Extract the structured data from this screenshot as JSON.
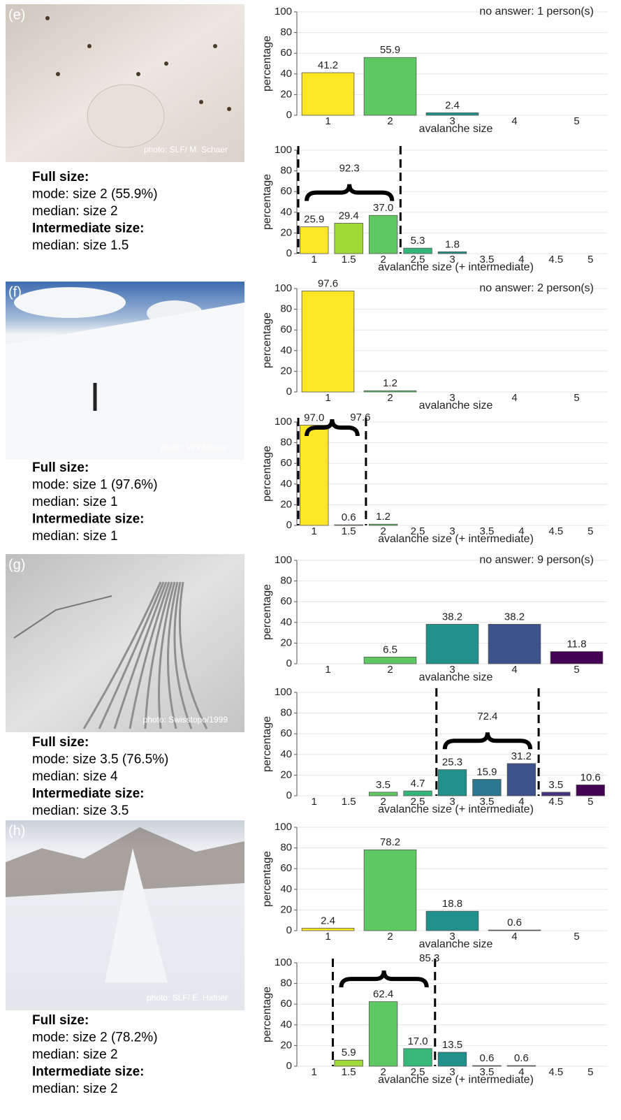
{
  "panels": [
    {
      "label": "(e)",
      "photo_credit": "photo: SLF/ M. Schaer",
      "full_size_heading": "Full size:",
      "full_size": [
        "mode: size 2 (55.9%)",
        "median: size 2"
      ],
      "intermediate_heading": "Intermediate size:",
      "intermediate": [
        "median: size 1.5"
      ]
    },
    {
      "label": "(f)",
      "photo_credit": "photo: W.Wimmer",
      "full_size_heading": "Full size:",
      "full_size": [
        "mode: size 1 (97.6%)",
        "median: size 1"
      ],
      "intermediate_heading": "Intermediate size:",
      "intermediate": [
        "median: size 1"
      ]
    },
    {
      "label": "(g)",
      "photo_credit": "photo: Swisstopo/1999",
      "full_size_heading": "Full size:",
      "full_size": [
        "mode: size 3.5 (76.5%)",
        "median: size 4"
      ],
      "intermediate_heading": "Intermediate size:",
      "intermediate": [
        "median: size 3.5"
      ]
    },
    {
      "label": "(h)",
      "photo_credit": "photo: SLF/ E. Hafner",
      "full_size_heading": "Full size:",
      "full_size": [
        "mode: size 2 (78.2%)",
        "median: size 2"
      ],
      "intermediate_heading": "Intermediate size:",
      "intermediate": [
        "median: size 2"
      ]
    }
  ],
  "chart_data": [
    {
      "type": "bar",
      "ylabel": "percentage",
      "xlabel": "avalanche size",
      "annotation": "no answer:  1 person(s)",
      "categories": [
        "1",
        "2",
        "3",
        "4",
        "5"
      ],
      "values": [
        41.2,
        55.9,
        2.4,
        0,
        0
      ],
      "value_labels": [
        "41.2",
        "55.9",
        "2.4",
        null,
        null
      ],
      "colors": [
        "#fde725",
        "#5ec962",
        "#21918c",
        "#3b528b",
        "#440154"
      ],
      "ylim": [
        0,
        100
      ],
      "yticks": [
        0,
        20,
        40,
        60,
        80,
        100
      ],
      "grid": true
    },
    {
      "type": "bar",
      "ylabel": "percentage",
      "xlabel": "avalanche size (+ intermediate)",
      "categories": [
        "1",
        "1.5",
        "2",
        "2.5",
        "3",
        "3.5",
        "4",
        "4.5",
        "5"
      ],
      "values": [
        25.9,
        29.4,
        37.0,
        5.3,
        1.8,
        0,
        0,
        0,
        0
      ],
      "value_labels": [
        "25.9",
        "29.4",
        "37.0",
        "5.3",
        "1.8",
        null,
        null,
        null,
        null
      ],
      "colors": [
        "#fde725",
        "#a0da39",
        "#5ec962",
        "#35b779",
        "#21918c",
        "#2a788e",
        "#3b528b",
        "#46337e",
        "#440154"
      ],
      "ylim": [
        0,
        100
      ],
      "yticks": [
        0,
        20,
        40,
        60,
        80,
        100
      ],
      "grid": true,
      "bracket": {
        "span": [
          "1",
          "2"
        ],
        "label": 92.3
      }
    },
    {
      "type": "bar",
      "ylabel": "percentage",
      "xlabel": "avalanche size",
      "annotation": "no answer:  2 person(s)",
      "categories": [
        "1",
        "2",
        "3",
        "4",
        "5"
      ],
      "values": [
        97.6,
        1.2,
        0,
        0,
        0
      ],
      "value_labels": [
        "97.6",
        "1.2",
        null,
        null,
        null
      ],
      "colors": [
        "#fde725",
        "#5ec962",
        "#21918c",
        "#3b528b",
        "#440154"
      ],
      "ylim": [
        0,
        100
      ],
      "yticks": [
        0,
        20,
        40,
        60,
        80,
        100
      ],
      "grid": true
    },
    {
      "type": "bar",
      "ylabel": "percentage",
      "xlabel": "avalanche size (+ intermediate)",
      "categories": [
        "1",
        "1.5",
        "2",
        "2.5",
        "3",
        "3.5",
        "4",
        "4.5",
        "5"
      ],
      "values": [
        97.0,
        0.6,
        1.2,
        0,
        0,
        0,
        0,
        0,
        0
      ],
      "value_labels": [
        "97.0",
        "0.6",
        "1.2",
        null,
        null,
        null,
        null,
        null,
        null
      ],
      "colors": [
        "#fde725",
        "#a0da39",
        "#5ec962",
        "#35b779",
        "#21918c",
        "#2a788e",
        "#3b528b",
        "#46337e",
        "#440154"
      ],
      "ylim": [
        0,
        100
      ],
      "yticks": [
        0,
        20,
        40,
        60,
        80,
        100
      ],
      "grid": true,
      "bracket": {
        "span": [
          "1",
          "1.5"
        ],
        "label": 97.6
      }
    },
    {
      "type": "bar",
      "ylabel": "percentage",
      "xlabel": "avalanche size",
      "annotation": "no answer:  9 person(s)",
      "categories": [
        "1",
        "2",
        "3",
        "4",
        "5"
      ],
      "values": [
        0,
        6.5,
        38.2,
        38.2,
        11.8
      ],
      "value_labels": [
        null,
        "6.5",
        "38.2",
        "38.2",
        "11.8"
      ],
      "colors": [
        "#fde725",
        "#5ec962",
        "#21918c",
        "#3b528b",
        "#440154"
      ],
      "ylim": [
        0,
        100
      ],
      "yticks": [
        0,
        20,
        40,
        60,
        80,
        100
      ],
      "grid": true
    },
    {
      "type": "bar",
      "ylabel": "percentage",
      "xlabel": "avalanche size (+ intermediate)",
      "categories": [
        "1",
        "1.5",
        "2",
        "2.5",
        "3",
        "3.5",
        "4",
        "4.5",
        "5"
      ],
      "values": [
        0,
        0,
        3.5,
        4.7,
        25.3,
        15.9,
        31.2,
        3.5,
        10.6
      ],
      "value_labels": [
        null,
        null,
        "3.5",
        "4.7",
        "25.3",
        "15.9",
        "31.2",
        "3.5",
        "10.6"
      ],
      "colors": [
        "#fde725",
        "#a0da39",
        "#5ec962",
        "#35b779",
        "#21918c",
        "#2a788e",
        "#3b528b",
        "#46337e",
        "#440154"
      ],
      "ylim": [
        0,
        100
      ],
      "yticks": [
        0,
        20,
        40,
        60,
        80,
        100
      ],
      "grid": true,
      "bracket": {
        "span": [
          "3",
          "4"
        ],
        "label": 72.4
      }
    },
    {
      "type": "bar",
      "ylabel": "percentage",
      "xlabel": "avalanche size",
      "categories": [
        "1",
        "2",
        "3",
        "4",
        "5"
      ],
      "values": [
        2.4,
        78.2,
        18.8,
        0.6,
        0
      ],
      "value_labels": [
        "2.4",
        "78.2",
        "18.8",
        "0.6",
        null
      ],
      "colors": [
        "#fde725",
        "#5ec962",
        "#21918c",
        "#3b528b",
        "#440154"
      ],
      "ylim": [
        0,
        100
      ],
      "yticks": [
        0,
        20,
        40,
        60,
        80,
        100
      ],
      "grid": true
    },
    {
      "type": "bar",
      "ylabel": "percentage",
      "xlabel": "avalanche size (+ intermediate)",
      "categories": [
        "1",
        "1.5",
        "2",
        "2.5",
        "3",
        "3.5",
        "4",
        "4.5",
        "5"
      ],
      "values": [
        0,
        5.9,
        62.4,
        17.0,
        13.5,
        0.6,
        0.6,
        0,
        0
      ],
      "value_labels": [
        null,
        "5.9",
        "62.4",
        "17.0",
        "13.5",
        "0.6",
        "0.6",
        null,
        null
      ],
      "colors": [
        "#fde725",
        "#a0da39",
        "#5ec962",
        "#35b779",
        "#21918c",
        "#2a788e",
        "#3b528b",
        "#46337e",
        "#440154"
      ],
      "ylim": [
        0,
        100
      ],
      "yticks": [
        0,
        20,
        40,
        60,
        80,
        100
      ],
      "grid": true,
      "bracket": {
        "span": [
          "1.5",
          "2.5"
        ],
        "label": 85.3
      }
    }
  ]
}
